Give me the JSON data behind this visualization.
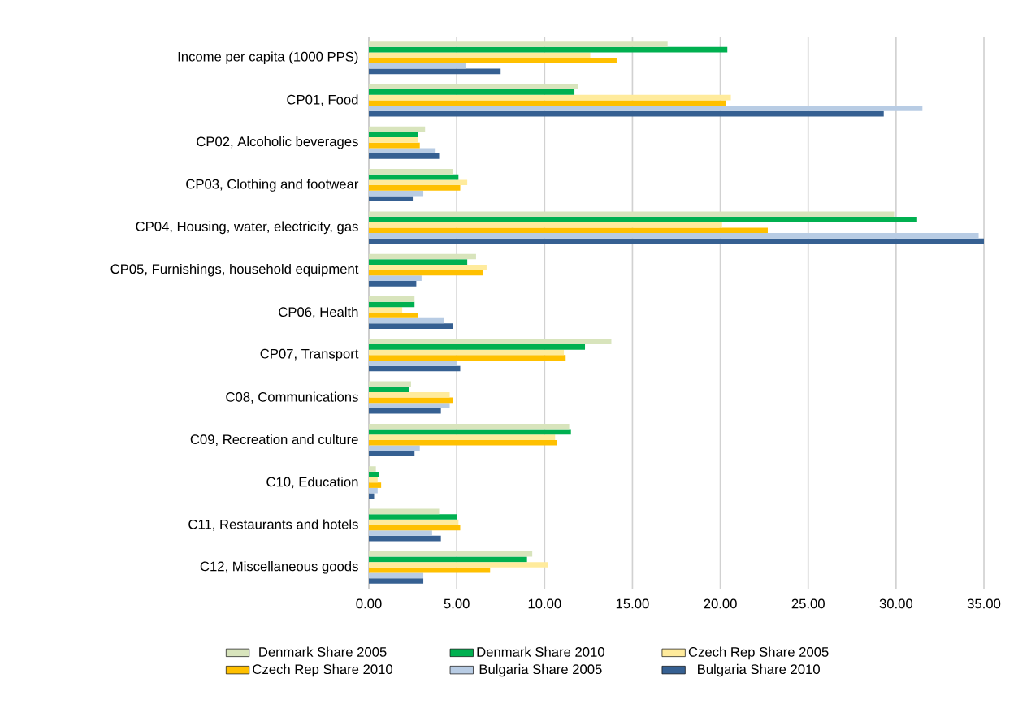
{
  "chart_data": {
    "type": "bar",
    "orientation": "horizontal",
    "categories": [
      "Income per capita (1000 PPS)",
      "CP01, Food",
      "CP02, Alcoholic beverages",
      "CP03, Clothing and footwear",
      "CP04, Housing, water, electricity, gas",
      "CP05, Furnishings, household equipment",
      "CP06, Health",
      "CP07, Transport",
      "C08, Communications",
      "C09, Recreation and culture",
      "C10, Education",
      "C11, Restaurants and hotels",
      "C12, Miscellaneous goods"
    ],
    "series": [
      {
        "name": "Denmark Share 2005",
        "color": "#d8e4bc",
        "values": [
          17.0,
          11.9,
          3.2,
          4.8,
          29.9,
          6.1,
          2.6,
          13.8,
          2.4,
          11.4,
          0.4,
          4.0,
          9.3
        ]
      },
      {
        "name": "Denmark Share 2010",
        "color": "#00b050",
        "values": [
          20.4,
          11.7,
          2.8,
          5.1,
          31.2,
          5.6,
          2.6,
          12.3,
          2.3,
          11.5,
          0.6,
          5.0,
          9.0
        ]
      },
      {
        "name": "Czech Rep Share 2005",
        "color": "#ffeb9c",
        "values": [
          12.6,
          20.6,
          2.8,
          5.6,
          20.1,
          6.7,
          1.9,
          11.1,
          4.6,
          10.6,
          0.5,
          5.1,
          10.2
        ]
      },
      {
        "name": "Czech Rep Share 2010",
        "color": "#ffc000",
        "values": [
          14.1,
          20.3,
          2.9,
          5.2,
          22.7,
          6.5,
          2.8,
          11.2,
          4.8,
          10.7,
          0.7,
          5.2,
          6.9
        ]
      },
      {
        "name": "Bulgaria Share 2005",
        "color": "#b8cce4",
        "values": [
          5.5,
          31.5,
          3.8,
          3.1,
          34.7,
          3.0,
          4.3,
          5.0,
          4.6,
          2.9,
          0.5,
          3.6,
          3.1
        ]
      },
      {
        "name": "Bulgaria Share 2010",
        "color": "#366092",
        "values": [
          7.5,
          29.3,
          4.0,
          2.5,
          35.0,
          2.7,
          4.8,
          5.2,
          4.1,
          2.6,
          0.3,
          4.1,
          3.1
        ]
      }
    ],
    "xlim": [
      0,
      35
    ],
    "xticks": [
      {
        "value": 0,
        "label": "0.00"
      },
      {
        "value": 5,
        "label": "5.00"
      },
      {
        "value": 10,
        "label": "10.00"
      },
      {
        "value": 15,
        "label": "15.00"
      },
      {
        "value": 20,
        "label": "20.00"
      },
      {
        "value": 25,
        "label": "25.00"
      },
      {
        "value": 30,
        "label": "30.00"
      },
      {
        "value": 35,
        "label": "35.00"
      }
    ],
    "grid": "x",
    "legend": "bottom"
  }
}
